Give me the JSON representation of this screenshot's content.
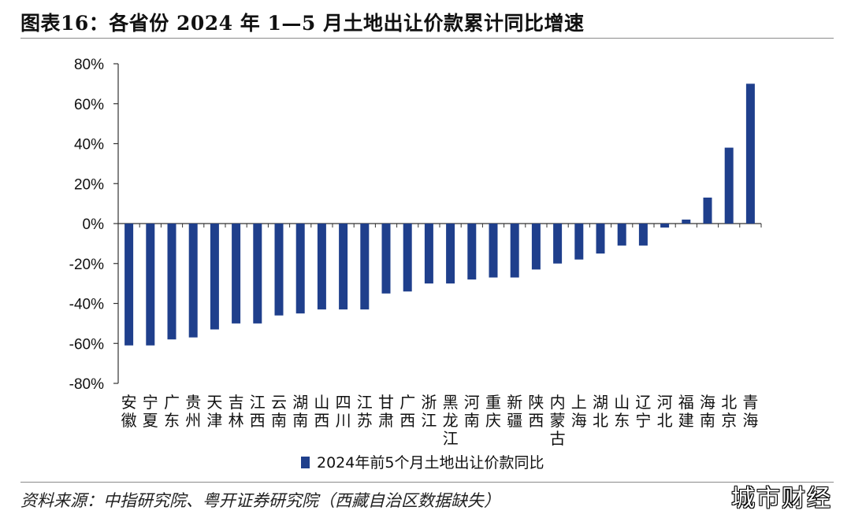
{
  "title": "图表16：各省份 2024 年 1—5 月土地出让价款累计同比增速",
  "source": "资料来源：中指研究院、粤开证券研究院（西藏自治区数据缺失）",
  "watermark": "城市财经",
  "colors": {
    "bar": "#1f3f8c",
    "axis": "#333333"
  },
  "chart_data": {
    "type": "bar",
    "title": "图表16：各省份 2024 年 1—5 月土地出让价款累计同比增速",
    "xlabel": "",
    "ylabel": "",
    "ylim": [
      -80,
      80
    ],
    "yticks": [
      "80%",
      "60%",
      "40%",
      "20%",
      "0%",
      "-20%",
      "-40%",
      "-60%",
      "-80%"
    ],
    "legend": "bottom",
    "categories": [
      "安徽",
      "宁夏",
      "广东",
      "贵州",
      "天津",
      "吉林",
      "江西",
      "云南",
      "湖南",
      "山西",
      "四川",
      "江苏",
      "甘肃",
      "广西",
      "浙江",
      "黑龙江",
      "河南",
      "重庆",
      "新疆",
      "陕西",
      "内蒙古",
      "上海",
      "湖北",
      "山东",
      "辽宁",
      "河北",
      "福建",
      "海南",
      "北京",
      "青海"
    ],
    "series": [
      {
        "name": "2024年前5个月土地出让价款同比",
        "values": [
          -61,
          -61,
          -58,
          -57,
          -53,
          -50,
          -50,
          -46,
          -45,
          -43,
          -43,
          -43,
          -35,
          -34,
          -30,
          -30,
          -28,
          -27,
          -27,
          -23,
          -20,
          -18,
          -15,
          -11,
          -11,
          -2,
          2,
          13,
          38,
          70
        ]
      }
    ]
  }
}
